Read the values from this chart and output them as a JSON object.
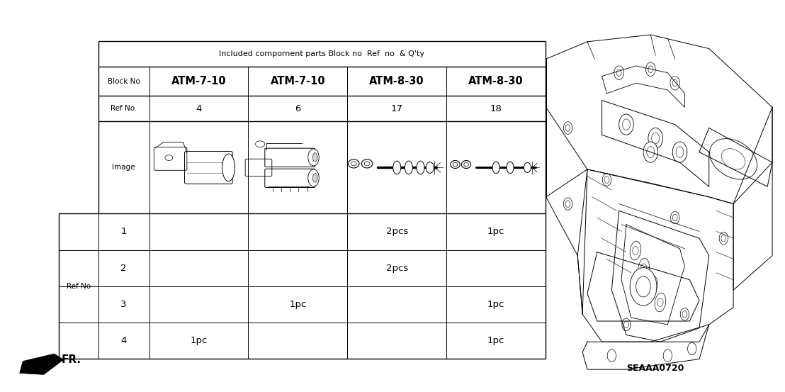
{
  "title": "Included compornent parts Block no  Ref  no  & Q'ty",
  "block_no_label": "Block No",
  "ref_no_label": "Ref No.",
  "ref_no_side_label": "Ref No",
  "image_label": "Image",
  "columns": [
    "ATM-7-10",
    "ATM-7-10",
    "ATM-8-30",
    "ATM-8-30"
  ],
  "ref_numbers": [
    "4",
    "6",
    "17",
    "18"
  ],
  "qty_rows": [
    [
      "1",
      "",
      "",
      "2pcs",
      "1pc"
    ],
    [
      "2",
      "",
      "",
      "2pcs",
      ""
    ],
    [
      "3",
      "",
      "1pc",
      "",
      "1pc"
    ],
    [
      "4",
      "1pc",
      "",
      "",
      "1pc"
    ]
  ],
  "diagram_code": "SEAAA0720",
  "fr_label": "FR.",
  "bg_color": "#ffffff",
  "line_color": "#000000",
  "tl": 0.125,
  "tr": 0.695,
  "tt": 0.895,
  "tb": 0.085,
  "title_fontsize": 8.0,
  "header_fontsize": 7.5,
  "bold_fontsize": 10.5,
  "data_fontsize": 9.5,
  "qty_fontsize": 9.5
}
